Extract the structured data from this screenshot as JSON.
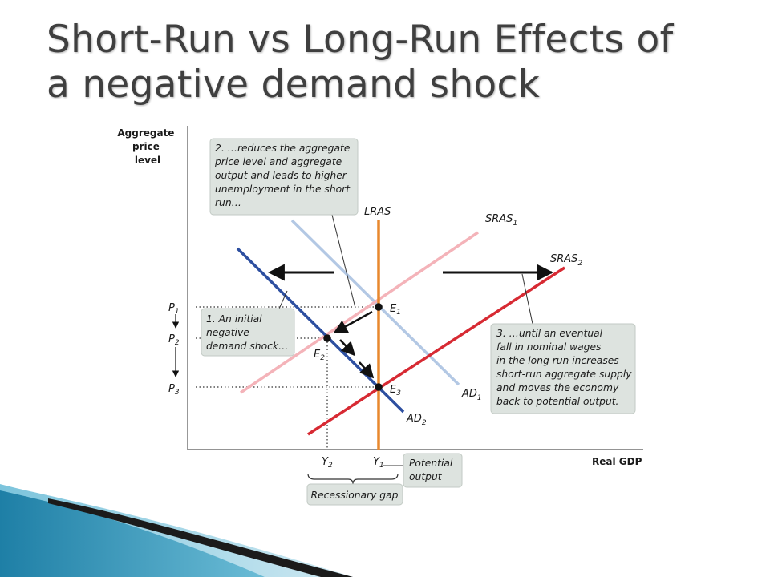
{
  "title": {
    "line1": "Short-Run vs Long-Run Effects of",
    "line2": "a negative demand shock"
  },
  "axes": {
    "y_label": [
      "Aggregate",
      "price",
      "level"
    ],
    "x_label": "Real GDP"
  },
  "price_levels": [
    {
      "base": "P",
      "sub": "1"
    },
    {
      "base": "P",
      "sub": "2"
    },
    {
      "base": "P",
      "sub": "3"
    }
  ],
  "output_levels": [
    {
      "base": "Y",
      "sub": "2"
    },
    {
      "base": "Y",
      "sub": "1"
    }
  ],
  "curves": {
    "lras": "LRAS",
    "sras1": {
      "base": "SRAS",
      "sub": "1"
    },
    "sras2": {
      "base": "SRAS",
      "sub": "2"
    },
    "ad1": {
      "base": "AD",
      "sub": "1"
    },
    "ad2": {
      "base": "AD",
      "sub": "2"
    }
  },
  "equilibria": [
    {
      "base": "E",
      "sub": "1"
    },
    {
      "base": "E",
      "sub": "2"
    },
    {
      "base": "E",
      "sub": "3"
    }
  ],
  "callouts": {
    "initial_shock": [
      "1. An initial",
      "negative",
      "demand shock…"
    ],
    "short_run": [
      "2. …reduces the aggregate",
      "price level and aggregate",
      "output and leads to higher",
      "unemployment in the short",
      "run…"
    ],
    "long_run": [
      "3. …until an eventual",
      "fall in nominal wages",
      "in the long run increases",
      "short-run aggregate supply",
      "and moves the economy",
      "back to potential output."
    ],
    "potential_output": [
      "Potential",
      "output"
    ],
    "recessionary_gap": "Recessionary gap"
  },
  "colors": {
    "lras": "#e8882e",
    "sras1": "#f4b3b9",
    "sras2": "#d72a33",
    "ad1": "#b3c8e4",
    "ad2": "#2d4fa0",
    "callout_bg": "#dde3df",
    "title_text": "#3f3f3f"
  }
}
